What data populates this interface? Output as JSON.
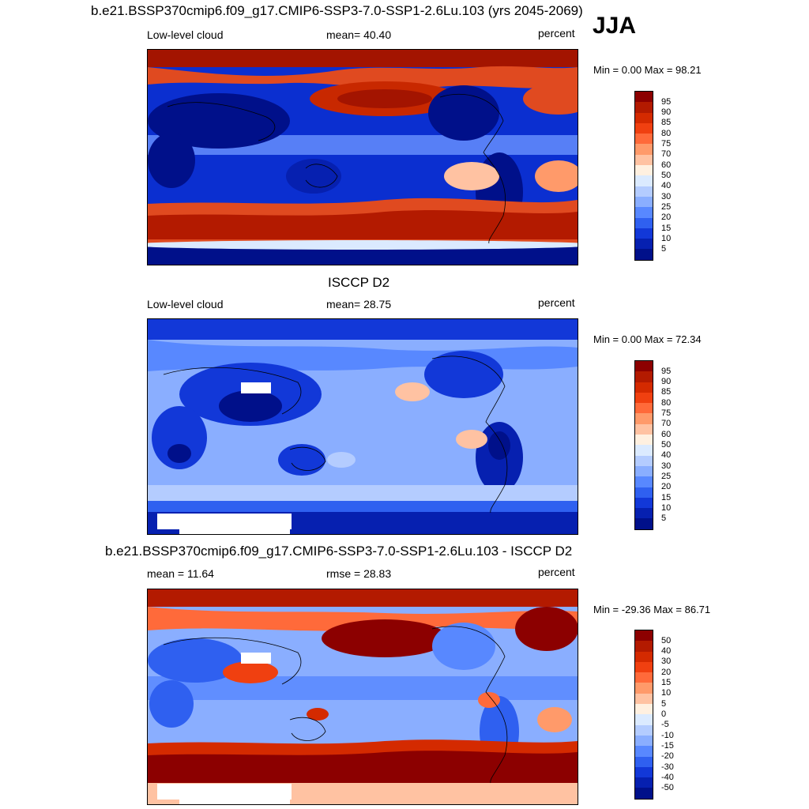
{
  "season": "JJA",
  "panels": [
    {
      "title": "b.e21.BSSP370cmip6.f09_g17.CMIP6-SSP3-7.0-SSP1-2.6Lu.103 (yrs 2045-2069)",
      "left_label": "Low-level cloud",
      "center_label": "mean=  40.40",
      "right_label": "percent",
      "minmax": "Min =    0.00 Max =  98.21"
    },
    {
      "title": "ISCCP D2",
      "left_label": "Low-level cloud",
      "center_label": "mean=  28.75",
      "right_label": "percent",
      "minmax": "Min =    0.00 Max =  72.34"
    },
    {
      "title": "b.e21.BSSP370cmip6.f09_g17.CMIP6-SSP3-7.0-SSP1-2.6Lu.103 - ISCCP D2",
      "left_label": "mean =  11.64",
      "center_label": "rmse =  28.83",
      "right_label": "percent",
      "minmax": "Min = -29.36 Max =  86.71"
    }
  ],
  "colorbars": {
    "abs": {
      "labels": [
        "95",
        "90",
        "85",
        "80",
        "75",
        "70",
        "60",
        "50",
        "40",
        "30",
        "25",
        "20",
        "15",
        "10",
        "5"
      ],
      "colors": [
        "#8c0000",
        "#b31a00",
        "#d42a00",
        "#f04010",
        "#ff6a3a",
        "#ff9a6a",
        "#ffc2a2",
        "#fff0e0",
        "#dbeaff",
        "#b4ccff",
        "#8aaeff",
        "#5888ff",
        "#2f60f0",
        "#1238d8",
        "#0620b0",
        "#00108a"
      ]
    },
    "diff": {
      "labels": [
        "50",
        "40",
        "30",
        "20",
        "15",
        "10",
        "5",
        "0",
        "-5",
        "-10",
        "-15",
        "-20",
        "-30",
        "-40",
        "-50"
      ],
      "colors": [
        "#8c0000",
        "#b31a00",
        "#d42a00",
        "#f04010",
        "#ff6a3a",
        "#ff9a6a",
        "#ffc2a2",
        "#fff0e0",
        "#dbeaff",
        "#b4ccff",
        "#8aaeff",
        "#5888ff",
        "#2f60f0",
        "#1238d8",
        "#0620b0",
        "#00108a"
      ]
    }
  }
}
